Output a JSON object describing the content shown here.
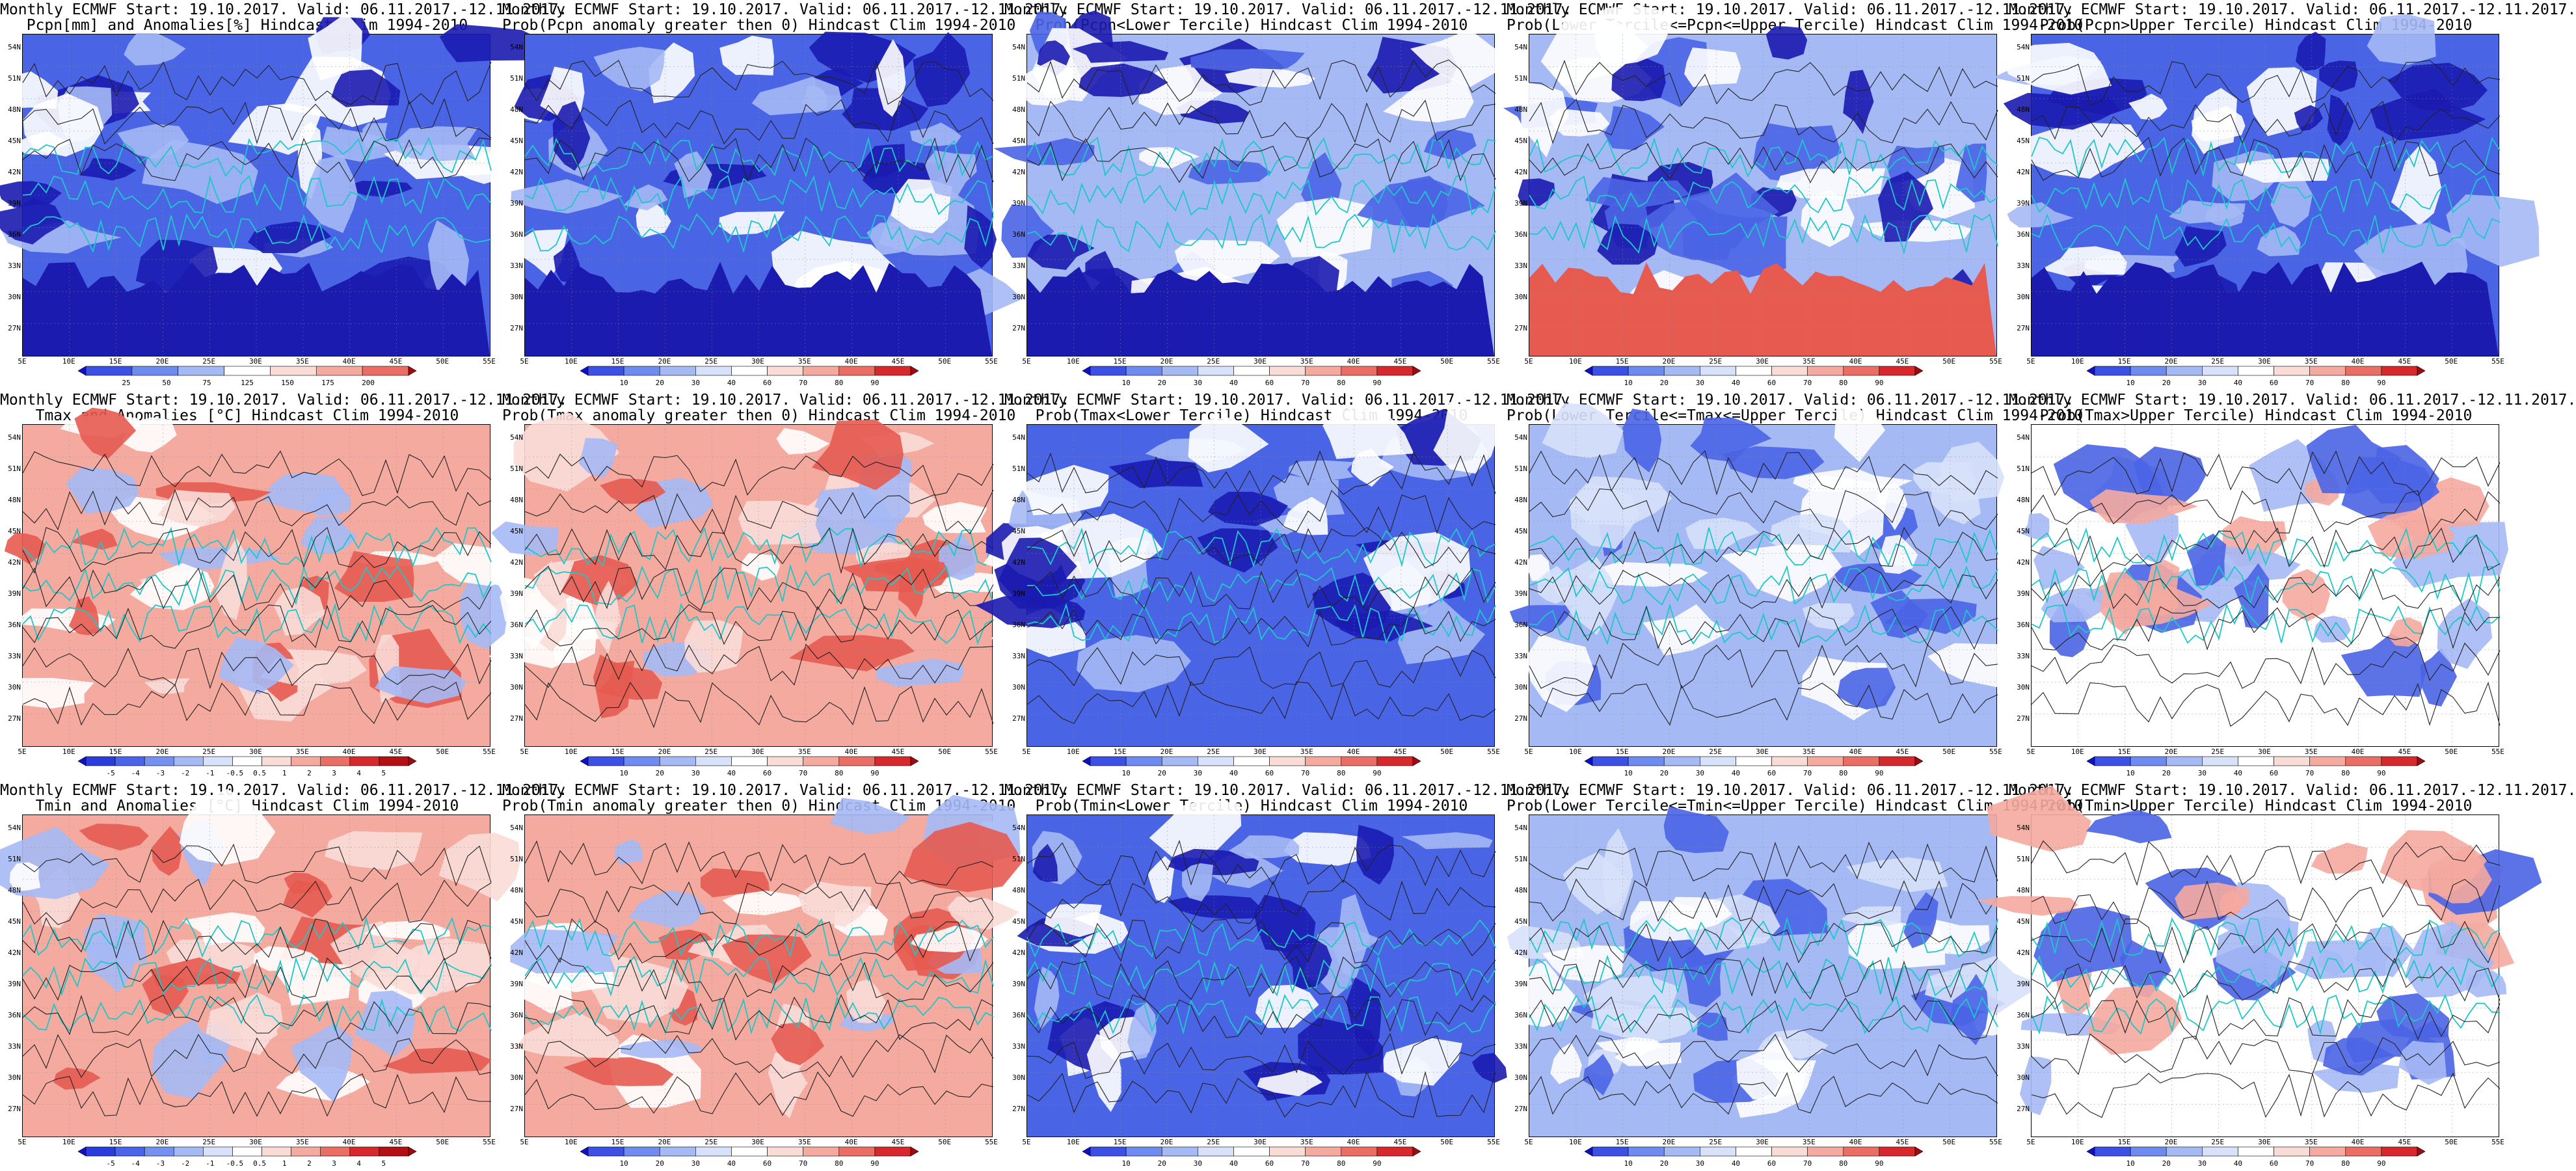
{
  "panels": [
    {
      "row": 0,
      "col": 0,
      "var": "Pcpn",
      "kind": "anom",
      "line1": "Monthly ECMWF Start: 19.10.2017. Valid: 06.11.2017.-12.11.2017.",
      "line2": "Pcpn[mm] and Anomalies[%] Hindcast Clim 1994-2010",
      "scale": "pcpn"
    },
    {
      "row": 0,
      "col": 1,
      "var": "Pcpn",
      "kind": "pos",
      "line1": "Monthly ECMWF Start: 19.10.2017. Valid: 06.11.2017.-12.11.2017.",
      "line2": "Prob(Pcpn anomaly greater then 0) Hindcast Clim 1994-2010",
      "scale": "prob"
    },
    {
      "row": 0,
      "col": 2,
      "var": "Pcpn",
      "kind": "low",
      "line1": "Monthly ECMWF Start: 19.10.2017. Valid: 06.11.2017.-12.11.2017.",
      "line2": "Prob(Pcpn<Lower Tercile) Hindcast Clim 1994-2010",
      "scale": "prob"
    },
    {
      "row": 0,
      "col": 3,
      "var": "Pcpn",
      "kind": "mid",
      "line1": "Monthly ECMWF Start: 19.10.2017. Valid: 06.11.2017.-12.11.2017.",
      "line2": "Prob(Lower Tercile<=Pcpn<=Upper Tercile) Hindcast Clim 1994-2010",
      "scale": "prob"
    },
    {
      "row": 0,
      "col": 4,
      "var": "Pcpn",
      "kind": "up",
      "line1": "Monthly ECMWF Start: 19.10.2017. Valid: 06.11.2017.-12.11.2017.",
      "line2": "Prob(Pcpn>Upper Tercile) Hindcast Clim 1994-2010",
      "scale": "prob"
    },
    {
      "row": 1,
      "col": 0,
      "var": "Tmax",
      "kind": "anom",
      "line1": "Monthly ECMWF Start: 19.10.2017. Valid: 06.11.2017.-12.11.2017.",
      "line2": "Tmax and Anomalies [°C] Hindcast Clim 1994-2010",
      "scale": "temp"
    },
    {
      "row": 1,
      "col": 1,
      "var": "Tmax",
      "kind": "pos",
      "line1": "Monthly ECMWF Start: 19.10.2017. Valid: 06.11.2017.-12.11.2017.",
      "line2": "Prob(Tmax anomaly greater then 0) Hindcast Clim 1994-2010",
      "scale": "prob"
    },
    {
      "row": 1,
      "col": 2,
      "var": "Tmax",
      "kind": "low",
      "line1": "Monthly ECMWF Start: 19.10.2017. Valid: 06.11.2017.-12.11.2017.",
      "line2": "Prob(Tmax<Lower Tercile) Hindcast Clim 1994-2010",
      "scale": "prob"
    },
    {
      "row": 1,
      "col": 3,
      "var": "Tmax",
      "kind": "mid",
      "line1": "Monthly ECMWF Start: 19.10.2017. Valid: 06.11.2017.-12.11.2017.",
      "line2": "Prob(Lower Tercile<=Tmax<=Upper Tercile) Hindcast Clim 1994-2010",
      "scale": "prob"
    },
    {
      "row": 1,
      "col": 4,
      "var": "Tmax",
      "kind": "up",
      "line1": "Monthly ECMWF Start: 19.10.2017. Valid: 06.11.2017.-12.11.2017.",
      "line2": "Prob(Tmax>Upper Tercile) Hindcast Clim 1994-2010",
      "scale": "prob"
    },
    {
      "row": 2,
      "col": 0,
      "var": "Tmin",
      "kind": "anom",
      "line1": "Monthly ECMWF Start: 19.10.2017. Valid: 06.11.2017.-12.11.2017.",
      "line2": "Tmin and Anomalies [°C] Hindcast Clim 1994-2010",
      "scale": "temp"
    },
    {
      "row": 2,
      "col": 1,
      "var": "Tmin",
      "kind": "pos",
      "line1": "Monthly ECMWF Start: 19.10.2017. Valid: 06.11.2017.-12.11.2017.",
      "line2": "Prob(Tmin anomaly greater then 0) Hindcast Clim 1994-2010",
      "scale": "prob"
    },
    {
      "row": 2,
      "col": 2,
      "var": "Tmin",
      "kind": "low",
      "line1": "Monthly ECMWF Start: 19.10.2017. Valid: 06.11.2017.-12.11.2017.",
      "line2": "Prob(Tmin<Lower Tercile) Hindcast Clim 1994-2010",
      "scale": "prob"
    },
    {
      "row": 2,
      "col": 3,
      "var": "Tmin",
      "kind": "mid",
      "line1": "Monthly ECMWF Start: 19.10.2017. Valid: 06.11.2017.-12.11.2017.",
      "line2": "Prob(Lower Tercile<=Tmin<=Upper Tercile) Hindcast Clim 1994-2010",
      "scale": "prob"
    },
    {
      "row": 2,
      "col": 4,
      "var": "Tmin",
      "kind": "up",
      "line1": "Monthly ECMWF Start: 19.10.2017. Valid: 06.11.2017.-12.11.2017.",
      "line2": "Prob(Tmin>Upper Tercile) Hindcast Clim 1994-2010",
      "scale": "prob"
    }
  ],
  "lat_ticks": [
    "54N",
    "51N",
    "48N",
    "45N",
    "42N",
    "39N",
    "36N",
    "33N",
    "30N",
    "27N"
  ],
  "lon_ticks": [
    "5E",
    "10E",
    "15E",
    "20E",
    "25E",
    "30E",
    "35E",
    "40E",
    "45E",
    "50E",
    "55E"
  ],
  "colorbars": {
    "prob": {
      "labels": [
        "10",
        "20",
        "30",
        "40",
        "60",
        "70",
        "80",
        "90"
      ],
      "colors": [
        "#1010c8",
        "#3c50e6",
        "#6e8cf0",
        "#a5b9f5",
        "#d7e1fa",
        "#ffffff",
        "#fadcd7",
        "#f5aaa0",
        "#eb6e64",
        "#d7282d",
        "#a00a0f"
      ]
    },
    "pcpn": {
      "labels": [
        "25",
        "50",
        "75",
        "125",
        "150",
        "175",
        "200"
      ],
      "colors": [
        "#1010c8",
        "#3c50e6",
        "#6e8cf0",
        "#a5b9f5",
        "#ffffff",
        "#fadcd7",
        "#f5aaa0",
        "#eb6e64",
        "#a00a0f"
      ]
    },
    "temp": {
      "labels": [
        "-5",
        "-4",
        "-3",
        "-2",
        "-1",
        "-0.5",
        "0.5",
        "1",
        "2",
        "3",
        "4",
        "5"
      ],
      "colors": [
        "#1010c8",
        "#2a3cdc",
        "#4a64ea",
        "#7490f0",
        "#a5b9f5",
        "#d7e1fa",
        "#ffffff",
        "#fadcd7",
        "#f5aaa0",
        "#eb6e64",
        "#d7282d",
        "#b40f14",
        "#a00a0f"
      ]
    }
  },
  "palette": {
    "blue_dark": "#1b1bb0",
    "blue_mid": "#4a64e6",
    "blue_light": "#a5b9f5",
    "red_light": "#f5aaa0",
    "red_mid": "#e65a50",
    "red_dark": "#b4141e",
    "coast": "#1ec8c8",
    "contour": "#222222"
  }
}
